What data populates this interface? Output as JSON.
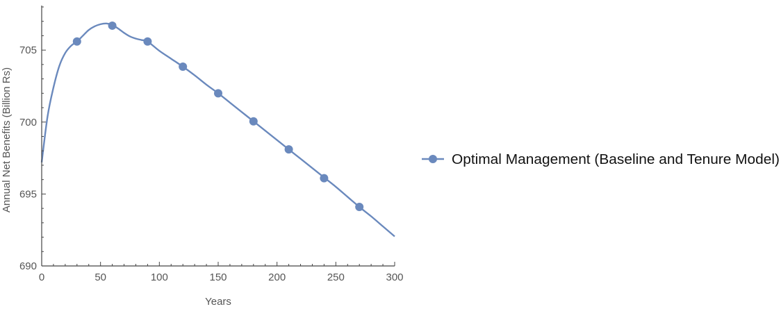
{
  "chart_data": {
    "type": "line",
    "xlabel": "Years",
    "ylabel": "Annual Net Benefits  (Billion Rs)",
    "xlim": [
      0,
      300
    ],
    "ylim": [
      690,
      708
    ],
    "xticks": [
      0,
      50,
      100,
      150,
      200,
      250,
      300
    ],
    "yticks": [
      690,
      695,
      700,
      705
    ],
    "grid": false,
    "legend_position": "right",
    "series": [
      {
        "name": "Optimal Management (Baseline and Tenure Model)",
        "color": "#6a89bd",
        "curve": {
          "x": [
            0,
            5,
            10,
            15,
            20,
            25,
            30,
            35,
            40,
            45,
            50,
            55,
            60,
            65,
            70,
            75,
            80,
            85,
            90,
            100,
            110,
            120,
            130,
            140,
            150,
            160,
            170,
            180,
            190,
            200,
            210,
            220,
            230,
            240,
            250,
            260,
            270,
            280,
            290,
            300
          ],
          "y": [
            697.2,
            700.4,
            702.4,
            703.9,
            704.8,
            705.3,
            705.6,
            706.0,
            706.4,
            706.65,
            706.8,
            706.85,
            706.75,
            706.5,
            706.2,
            705.95,
            705.8,
            705.7,
            705.6,
            704.95,
            704.4,
            703.85,
            703.25,
            702.6,
            702.0,
            701.35,
            700.7,
            700.05,
            699.4,
            698.75,
            698.1,
            697.45,
            696.8,
            696.15,
            695.5,
            694.8,
            694.1,
            693.45,
            692.75,
            692.05
          ]
        },
        "markers": {
          "x": [
            30,
            60,
            90,
            120,
            150,
            180,
            210,
            240,
            270
          ],
          "y": [
            705.6,
            706.7,
            705.6,
            703.85,
            702.0,
            700.05,
            698.1,
            696.1,
            694.1
          ]
        }
      }
    ]
  }
}
